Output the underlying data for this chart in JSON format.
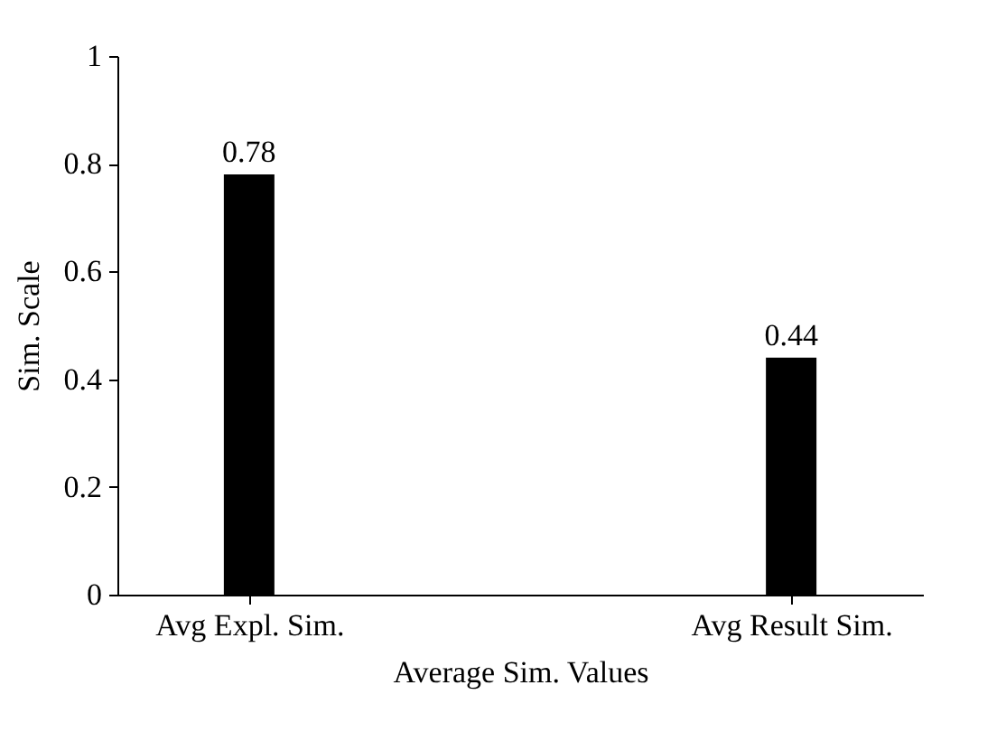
{
  "chart_data": {
    "type": "bar",
    "xlabel": "Average Sim. Values",
    "ylabel": "Sim. Scale",
    "categories": [
      "Avg Expl. Sim.",
      "Avg Result Sim."
    ],
    "values": [
      0.78,
      0.44
    ],
    "color": "#000000",
    "ylim": [
      0,
      1
    ],
    "yticks": [
      {
        "value": 0,
        "label": "0"
      },
      0.2,
      0.4,
      0.6,
      0.8,
      {
        "value": 1,
        "label": "1"
      }
    ],
    "grid": false,
    "data_labels": true
  }
}
